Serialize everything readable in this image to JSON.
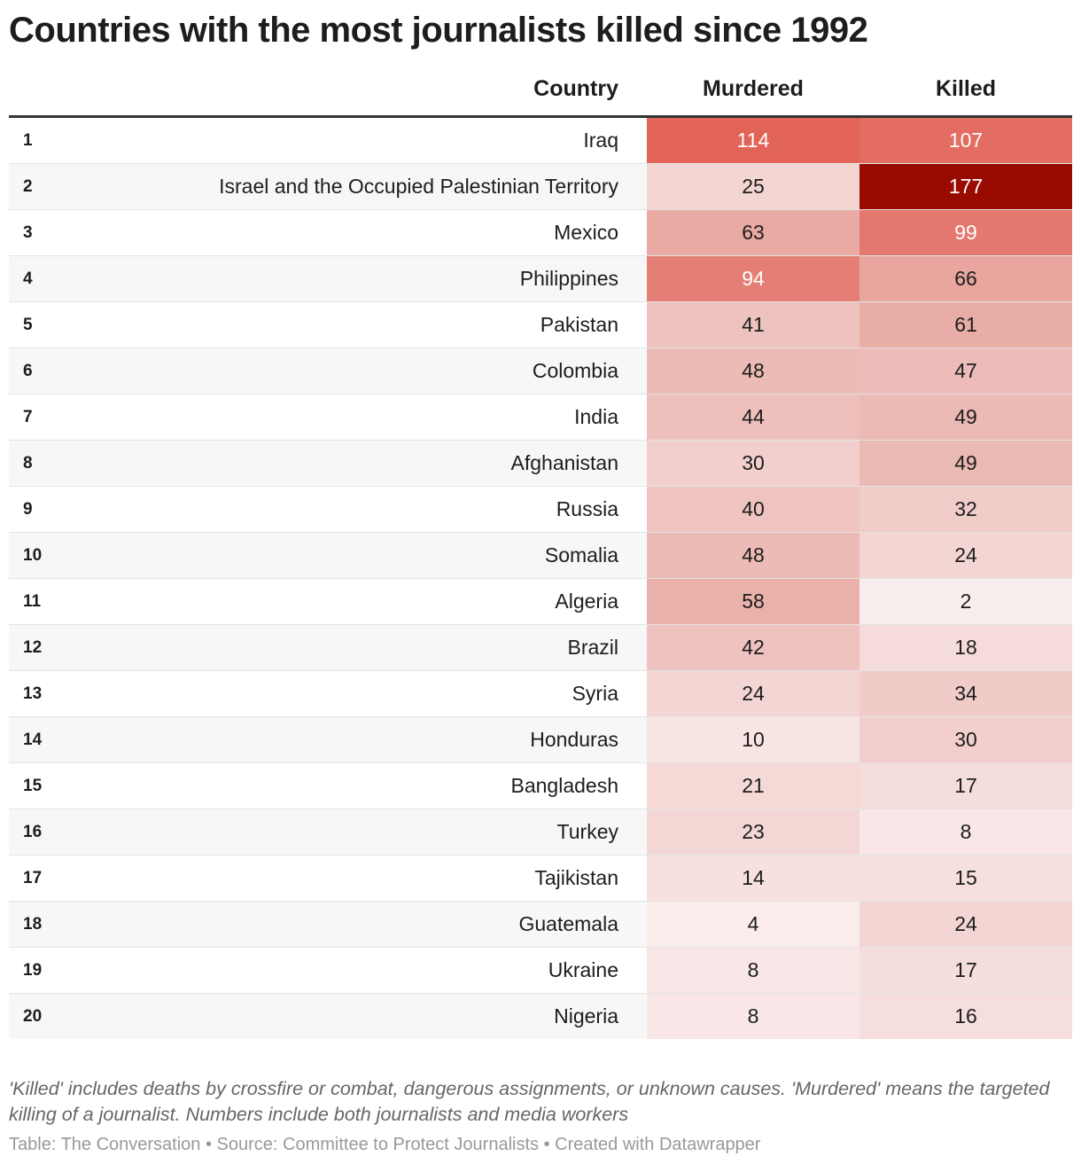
{
  "title": "Countries with the most journalists killed since 1992",
  "colors": {
    "scale_low": "#faf0f0",
    "scale_mid": "#e9aea8",
    "scale_high": "#e26357",
    "scale_max": "#990a00"
  },
  "chart_data": {
    "type": "table",
    "title": "Countries with the most journalists killed since 1992",
    "columns": [
      "",
      "Country",
      "Murdered",
      "Killed"
    ],
    "rows": [
      {
        "rank": "1",
        "country": "Iraq",
        "murdered": 114,
        "killed": 107
      },
      {
        "rank": "2",
        "country": "Israel and the Occupied Palestinian Territory",
        "murdered": 25,
        "killed": 177
      },
      {
        "rank": "3",
        "country": "Mexico",
        "murdered": 63,
        "killed": 99
      },
      {
        "rank": "4",
        "country": "Philippines",
        "murdered": 94,
        "killed": 66
      },
      {
        "rank": "5",
        "country": "Pakistan",
        "murdered": 41,
        "killed": 61
      },
      {
        "rank": "6",
        "country": "Colombia",
        "murdered": 48,
        "killed": 47
      },
      {
        "rank": "7",
        "country": "India",
        "murdered": 44,
        "killed": 49
      },
      {
        "rank": "8",
        "country": "Afghanistan",
        "murdered": 30,
        "killed": 49
      },
      {
        "rank": "9",
        "country": "Russia",
        "murdered": 40,
        "killed": 32
      },
      {
        "rank": "10",
        "country": "Somalia",
        "murdered": 48,
        "killed": 24
      },
      {
        "rank": "11",
        "country": "Algeria",
        "murdered": 58,
        "killed": 2
      },
      {
        "rank": "12",
        "country": "Brazil",
        "murdered": 42,
        "killed": 18
      },
      {
        "rank": "13",
        "country": "Syria",
        "murdered": 24,
        "killed": 34
      },
      {
        "rank": "14",
        "country": "Honduras",
        "murdered": 10,
        "killed": 30
      },
      {
        "rank": "15",
        "country": "Bangladesh",
        "murdered": 21,
        "killed": 17
      },
      {
        "rank": "16",
        "country": "Turkey",
        "murdered": 23,
        "killed": 8
      },
      {
        "rank": "17",
        "country": "Tajikistan",
        "murdered": 14,
        "killed": 15
      },
      {
        "rank": "18",
        "country": "Guatemala",
        "murdered": 4,
        "killed": 24
      },
      {
        "rank": "19",
        "country": "Ukraine",
        "murdered": 8,
        "killed": 17
      },
      {
        "rank": "20",
        "country": "Nigeria",
        "murdered": 8,
        "killed": 16
      }
    ]
  },
  "notes": "'Killed' includes deaths by crossfire or combat, dangerous assignments, or unknown causes. 'Murdered' means the targeted killing of a journalist. Numbers include both journalists and media workers",
  "source": "Table: The Conversation • Source: Committee to Protect Journalists • Created with Datawrapper"
}
